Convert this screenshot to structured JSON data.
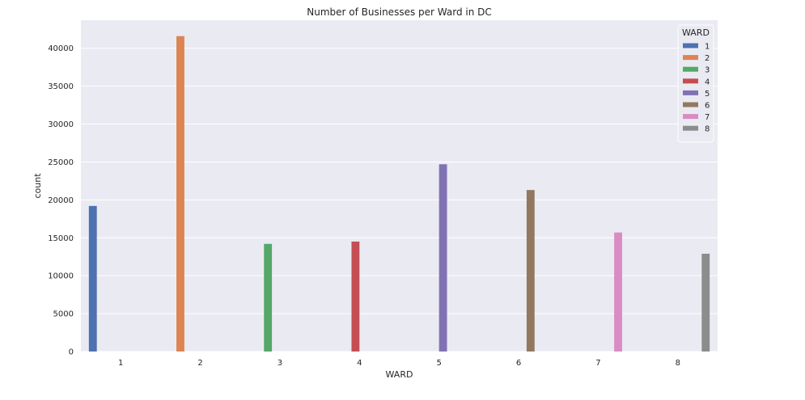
{
  "chart_data": {
    "type": "bar",
    "title": "Number of Businesses per Ward in DC",
    "xlabel": "WARD",
    "ylabel": "count",
    "categories": [
      "1",
      "2",
      "3",
      "4",
      "5",
      "6",
      "7",
      "8"
    ],
    "ylim": [
      0,
      43700
    ],
    "yticks": [
      0,
      5000,
      10000,
      15000,
      20000,
      25000,
      30000,
      35000,
      40000
    ],
    "grid": true,
    "legend": {
      "title": "WARD",
      "placement": "top-right"
    },
    "series": [
      {
        "name": "1",
        "category": "1",
        "value": 19200,
        "color": "#4c72b0"
      },
      {
        "name": "2",
        "category": "2",
        "value": 41600,
        "color": "#dd8452"
      },
      {
        "name": "3",
        "category": "3",
        "value": 14200,
        "color": "#55a868"
      },
      {
        "name": "4",
        "category": "4",
        "value": 14500,
        "color": "#c44e52"
      },
      {
        "name": "5",
        "category": "5",
        "value": 24700,
        "color": "#8172b3"
      },
      {
        "name": "6",
        "category": "6",
        "value": 21300,
        "color": "#937860"
      },
      {
        "name": "7",
        "category": "7",
        "value": 15700,
        "color": "#da8bc3"
      },
      {
        "name": "8",
        "category": "8",
        "value": 12900,
        "color": "#8c8c8c"
      }
    ],
    "background_color": "#eaeaf2",
    "grid_color": "#ffffff"
  }
}
